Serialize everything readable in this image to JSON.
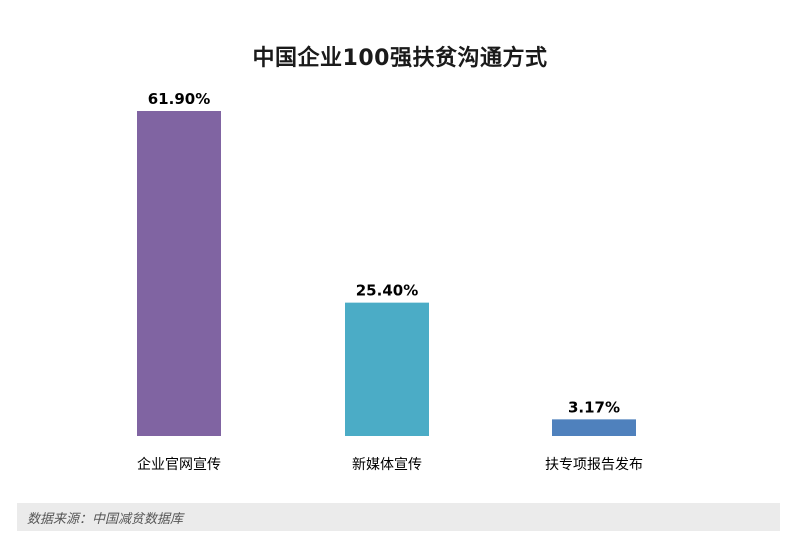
{
  "chart_data": {
    "type": "bar",
    "title": "中国企业100强扶贫沟通方式",
    "categories": [
      "企业官网宣传",
      "新媒体宣传",
      "扶专项报告发布"
    ],
    "values": [
      61.9,
      25.4,
      3.17
    ],
    "data_labels": [
      "61.90%",
      "25.40%",
      "3.17%"
    ],
    "colors": [
      "#8064a2",
      "#4bacc6",
      "#4f81bd"
    ],
    "ylim": [
      0,
      61.9
    ],
    "grid": false,
    "legend": "none"
  },
  "footer": {
    "source": "数据来源：中国减贫数据库"
  }
}
